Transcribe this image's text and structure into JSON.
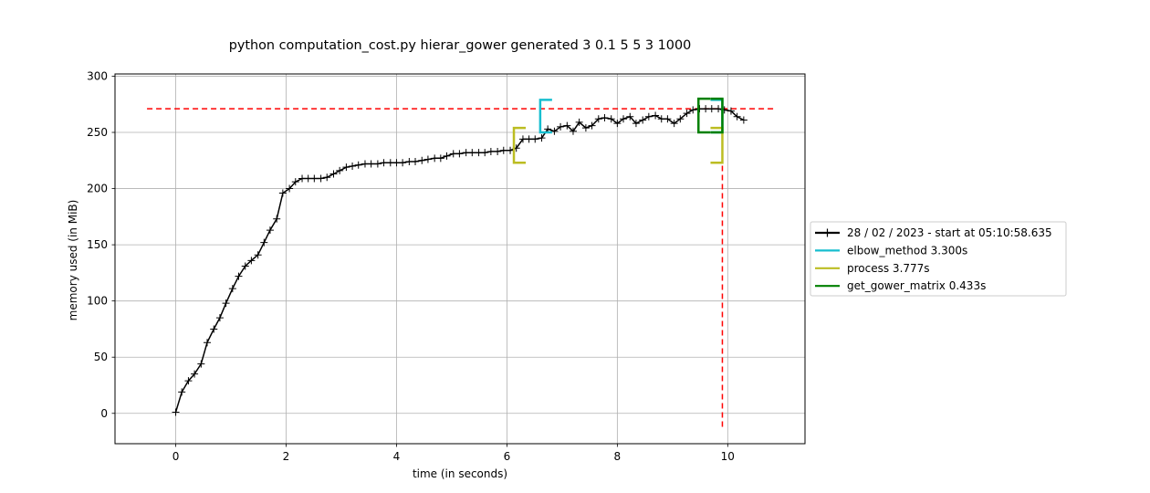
{
  "chart_data": {
    "type": "line",
    "title": "python computation_cost.py hierar_gower generated 3 0.1 5 5 3 1000",
    "xlabel": "time (in seconds)",
    "ylabel": "memory used (in MiB)",
    "xlim": [
      -1.1,
      11.4
    ],
    "ylim": [
      -27,
      302
    ],
    "xticks": [
      0,
      2,
      4,
      6,
      8,
      10
    ],
    "yticks": [
      0,
      50,
      100,
      150,
      200,
      250,
      300
    ],
    "grid": true,
    "legend_position": "center-right",
    "series": [
      {
        "name": "28 / 02 / 2023 - start at 05:10:58.635",
        "color": "#000000",
        "marker": "+",
        "x": [
          0.0,
          0.11,
          0.23,
          0.34,
          0.46,
          0.57,
          0.69,
          0.8,
          0.91,
          1.03,
          1.14,
          1.26,
          1.37,
          1.49,
          1.6,
          1.71,
          1.83,
          1.94,
          2.06,
          2.17,
          2.29,
          2.4,
          2.51,
          2.63,
          2.74,
          2.86,
          2.97,
          3.09,
          3.2,
          3.31,
          3.43,
          3.54,
          3.66,
          3.77,
          3.89,
          4.0,
          4.11,
          4.23,
          4.34,
          4.46,
          4.57,
          4.69,
          4.8,
          4.91,
          5.03,
          5.14,
          5.26,
          5.37,
          5.49,
          5.6,
          5.71,
          5.83,
          5.94,
          6.06,
          6.17,
          6.29,
          6.4,
          6.51,
          6.63,
          6.74,
          6.86,
          6.97,
          7.09,
          7.2,
          7.31,
          7.43,
          7.54,
          7.66,
          7.77,
          7.89,
          8.0,
          8.11,
          8.23,
          8.34,
          8.46,
          8.57,
          8.69,
          8.8,
          8.91,
          9.03,
          9.14,
          9.26,
          9.37,
          9.49,
          9.6,
          9.71,
          9.83,
          9.94,
          10.06,
          10.17,
          10.29
        ],
        "y": [
          1,
          19,
          29,
          35,
          44,
          63,
          75,
          85,
          98,
          111,
          122,
          131,
          136,
          141,
          152,
          163,
          173,
          196,
          200,
          206,
          209,
          209,
          209,
          209,
          210,
          213,
          216,
          219,
          220,
          221,
          222,
          222,
          222,
          223,
          223,
          223,
          223,
          224,
          224,
          225,
          226,
          227,
          227,
          229,
          231,
          231,
          232,
          232,
          232,
          232,
          233,
          233,
          234,
          234,
          236,
          244,
          244,
          244,
          245,
          253,
          251,
          255,
          256,
          251,
          259,
          254,
          256,
          262,
          263,
          262,
          258,
          262,
          264,
          258,
          261,
          264,
          265,
          262,
          262,
          258,
          262,
          267,
          270,
          271,
          271,
          271,
          271,
          270,
          269,
          264,
          261
        ]
      },
      {
        "name": "elbow_method 3.300s",
        "color": "#17becf",
        "marker": "bracket",
        "x_start": 6.603,
        "x_end": 9.903,
        "y_low": 250,
        "y_high": 279
      },
      {
        "name": "process 3.777s",
        "color": "#bcbd22",
        "marker": "bracket",
        "x_start": 6.126,
        "x_end": 9.903,
        "y_low": 223,
        "y_high": 254
      },
      {
        "name": "get_gower_matrix 0.433s",
        "color": "#008000",
        "marker": "bracket",
        "x_start": 9.47,
        "x_end": 9.903,
        "y_low": 250,
        "y_high": 280
      }
    ],
    "reference_lines": {
      "color": "#ff0000",
      "style": "dashed",
      "horizontal_y": 271,
      "horizontal_x_range": [
        -0.52,
        10.87
      ],
      "vertical_x": 9.903,
      "vertical_y_range": [
        -12,
        271
      ]
    }
  }
}
